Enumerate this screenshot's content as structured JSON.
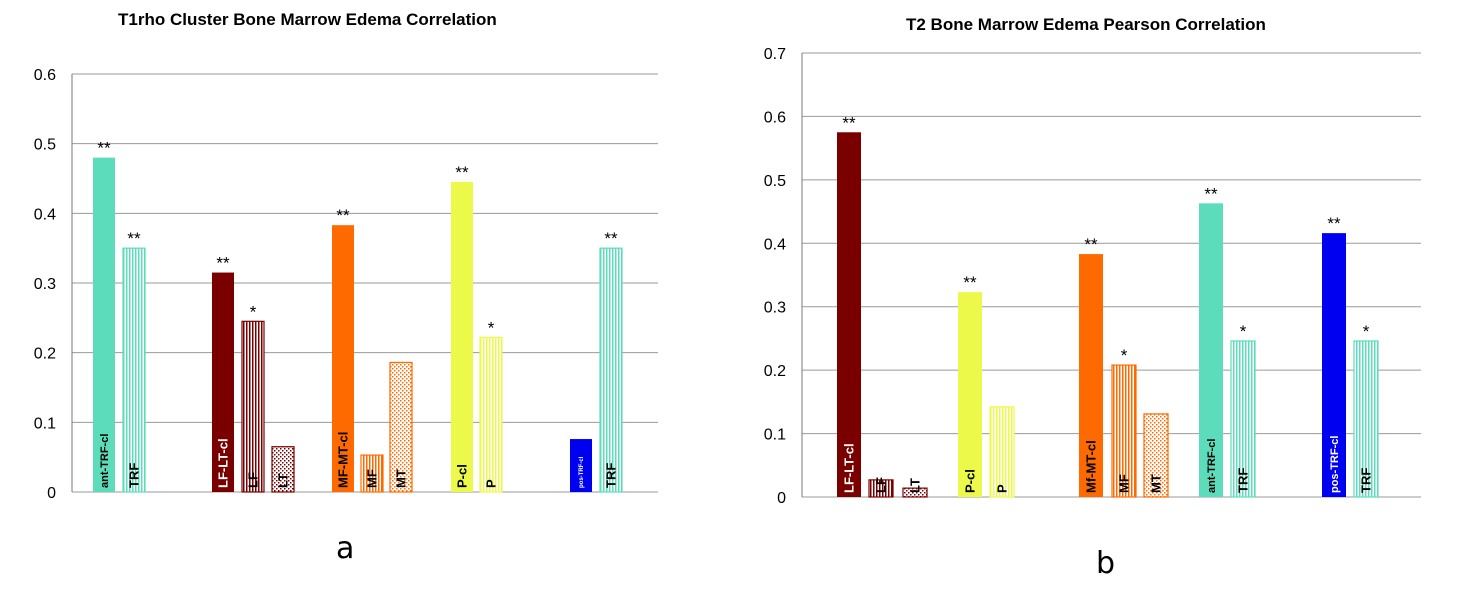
{
  "chart_data": [
    {
      "type": "bar",
      "title": "T1rho Cluster Bone Marrow Edema Correlation",
      "panel_label": "a",
      "xlabel": "",
      "ylabel": "",
      "ylim": [
        0,
        0.6
      ],
      "yticks": [
        "0",
        "0.1",
        "0.2",
        "0.3",
        "0.4",
        "0.5",
        "0.6"
      ],
      "grid": true,
      "bars": [
        {
          "label": "ant-TRF-cl",
          "value": 0.48,
          "sig": "**",
          "color": "#5cdcba",
          "pattern": "solid",
          "group": 0
        },
        {
          "label": "TRF",
          "value": 0.35,
          "sig": "**",
          "color": "#5cdcba",
          "pattern": "vlines",
          "group": 0
        },
        {
          "label": "LF-LT-cl",
          "value": 0.315,
          "sig": "**",
          "color": "#7a0000",
          "pattern": "solid",
          "group": 1
        },
        {
          "label": "LF",
          "value": 0.245,
          "sig": "*",
          "color": "#7a0000",
          "pattern": "vlines",
          "group": 1
        },
        {
          "label": "LT",
          "value": 0.065,
          "sig": "",
          "color": "#7a0000",
          "pattern": "dots",
          "group": 1
        },
        {
          "label": "MF-MT-cl",
          "value": 0.383,
          "sig": "**",
          "color": "#ff6a00",
          "pattern": "solid",
          "group": 2
        },
        {
          "label": "MF",
          "value": 0.053,
          "sig": "",
          "color": "#ff6a00",
          "pattern": "vlines",
          "group": 2
        },
        {
          "label": "MT",
          "value": 0.186,
          "sig": "",
          "color": "#ff6a00",
          "pattern": "dots",
          "group": 2
        },
        {
          "label": "P-cl",
          "value": 0.445,
          "sig": "**",
          "color": "#ecf84a",
          "pattern": "solid",
          "group": 3
        },
        {
          "label": "P",
          "value": 0.222,
          "sig": "*",
          "color": "#ecf84a",
          "pattern": "vlines",
          "group": 3
        },
        {
          "label": "pos-TRF-cl",
          "value": 0.076,
          "sig": "",
          "color": "#0000f0",
          "pattern": "solid",
          "group": 4
        },
        {
          "label": "TRF",
          "value": 0.35,
          "sig": "**",
          "color": "#5cdcba",
          "pattern": "vlines",
          "group": 4
        }
      ]
    },
    {
      "type": "bar",
      "title": "T2 Bone Marrow Edema Pearson Correlation",
      "panel_label": "b",
      "xlabel": "",
      "ylabel": "",
      "ylim": [
        0,
        0.7
      ],
      "yticks": [
        "0",
        "0.1",
        "0.2",
        "0.3",
        "0.4",
        "0.5",
        "0.6",
        "0.7"
      ],
      "grid": true,
      "bars": [
        {
          "label": "LF-LT-cl",
          "value": 0.575,
          "sig": "**",
          "color": "#7a0000",
          "pattern": "solid",
          "group": 0
        },
        {
          "label": "LF",
          "value": 0.027,
          "sig": "",
          "color": "#7a0000",
          "pattern": "vlines",
          "group": 0
        },
        {
          "label": "LT",
          "value": 0.014,
          "sig": "",
          "color": "#7a0000",
          "pattern": "dots",
          "group": 0
        },
        {
          "label": "P-cl",
          "value": 0.323,
          "sig": "**",
          "color": "#ecf84a",
          "pattern": "solid",
          "group": 1
        },
        {
          "label": "P",
          "value": 0.142,
          "sig": "",
          "color": "#ecf84a",
          "pattern": "vlines",
          "group": 1
        },
        {
          "label": "Mf-MT-cl",
          "value": 0.383,
          "sig": "**",
          "color": "#ff6a00",
          "pattern": "solid",
          "group": 2
        },
        {
          "label": "MF",
          "value": 0.208,
          "sig": "*",
          "color": "#ff6a00",
          "pattern": "vlines",
          "group": 2
        },
        {
          "label": "MT",
          "value": 0.131,
          "sig": "",
          "color": "#ff6a00",
          "pattern": "dots",
          "group": 2
        },
        {
          "label": "ant-TRF-cl",
          "value": 0.463,
          "sig": "**",
          "color": "#5cdcba",
          "pattern": "solid",
          "group": 3
        },
        {
          "label": "TRF",
          "value": 0.246,
          "sig": "*",
          "color": "#5cdcba",
          "pattern": "vlines",
          "group": 3
        },
        {
          "label": "pos-TRF-cl",
          "value": 0.416,
          "sig": "**",
          "color": "#0000f0",
          "pattern": "solid",
          "group": 4
        },
        {
          "label": "TRF",
          "value": 0.246,
          "sig": "*",
          "color": "#5cdcba",
          "pattern": "vlines",
          "group": 4
        }
      ]
    }
  ]
}
